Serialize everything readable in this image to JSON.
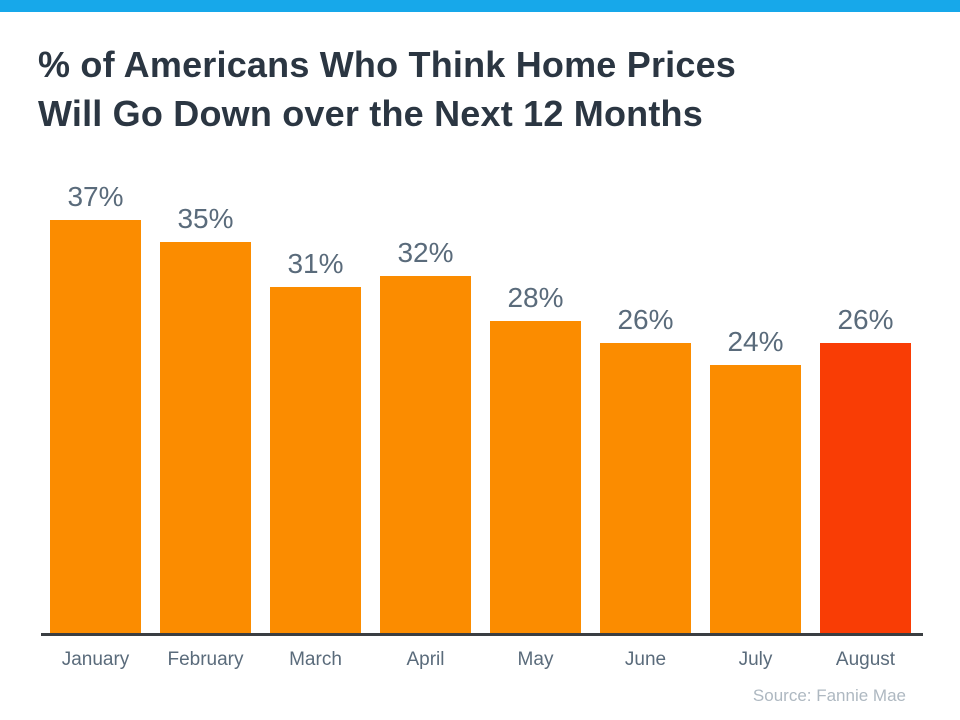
{
  "page": {
    "background": "#FFFFFF",
    "top_strip_color": "#17A8EA"
  },
  "title_lines": [
    "% of Americans Who Think Home Prices",
    "Will Go Down over the Next 12 Months"
  ],
  "source_note": "Source: Fannie Mae",
  "chart_data": {
    "type": "bar",
    "title": "% of Americans Who Think Home Prices Will Go Down over the Next 12 Months",
    "categories": [
      "January",
      "February",
      "March",
      "April",
      "May",
      "June",
      "July",
      "August"
    ],
    "values": [
      37,
      35,
      31,
      32,
      28,
      26,
      24,
      26
    ],
    "value_labels": [
      "37%",
      "35%",
      "31%",
      "32%",
      "28%",
      "26%",
      "24%",
      "26%"
    ],
    "xlabel": "",
    "ylabel": "",
    "ylim": [
      0,
      40
    ],
    "grid": false,
    "legend": false,
    "bar_color": "#FB8C00",
    "highlight_color": "#F93D05",
    "highlight_index": 7,
    "value_label_color": "#5A6B7B",
    "tick_label_color": "#5A6B7B",
    "axis_color": "#3A3E42",
    "source": "Source: Fannie Mae"
  }
}
